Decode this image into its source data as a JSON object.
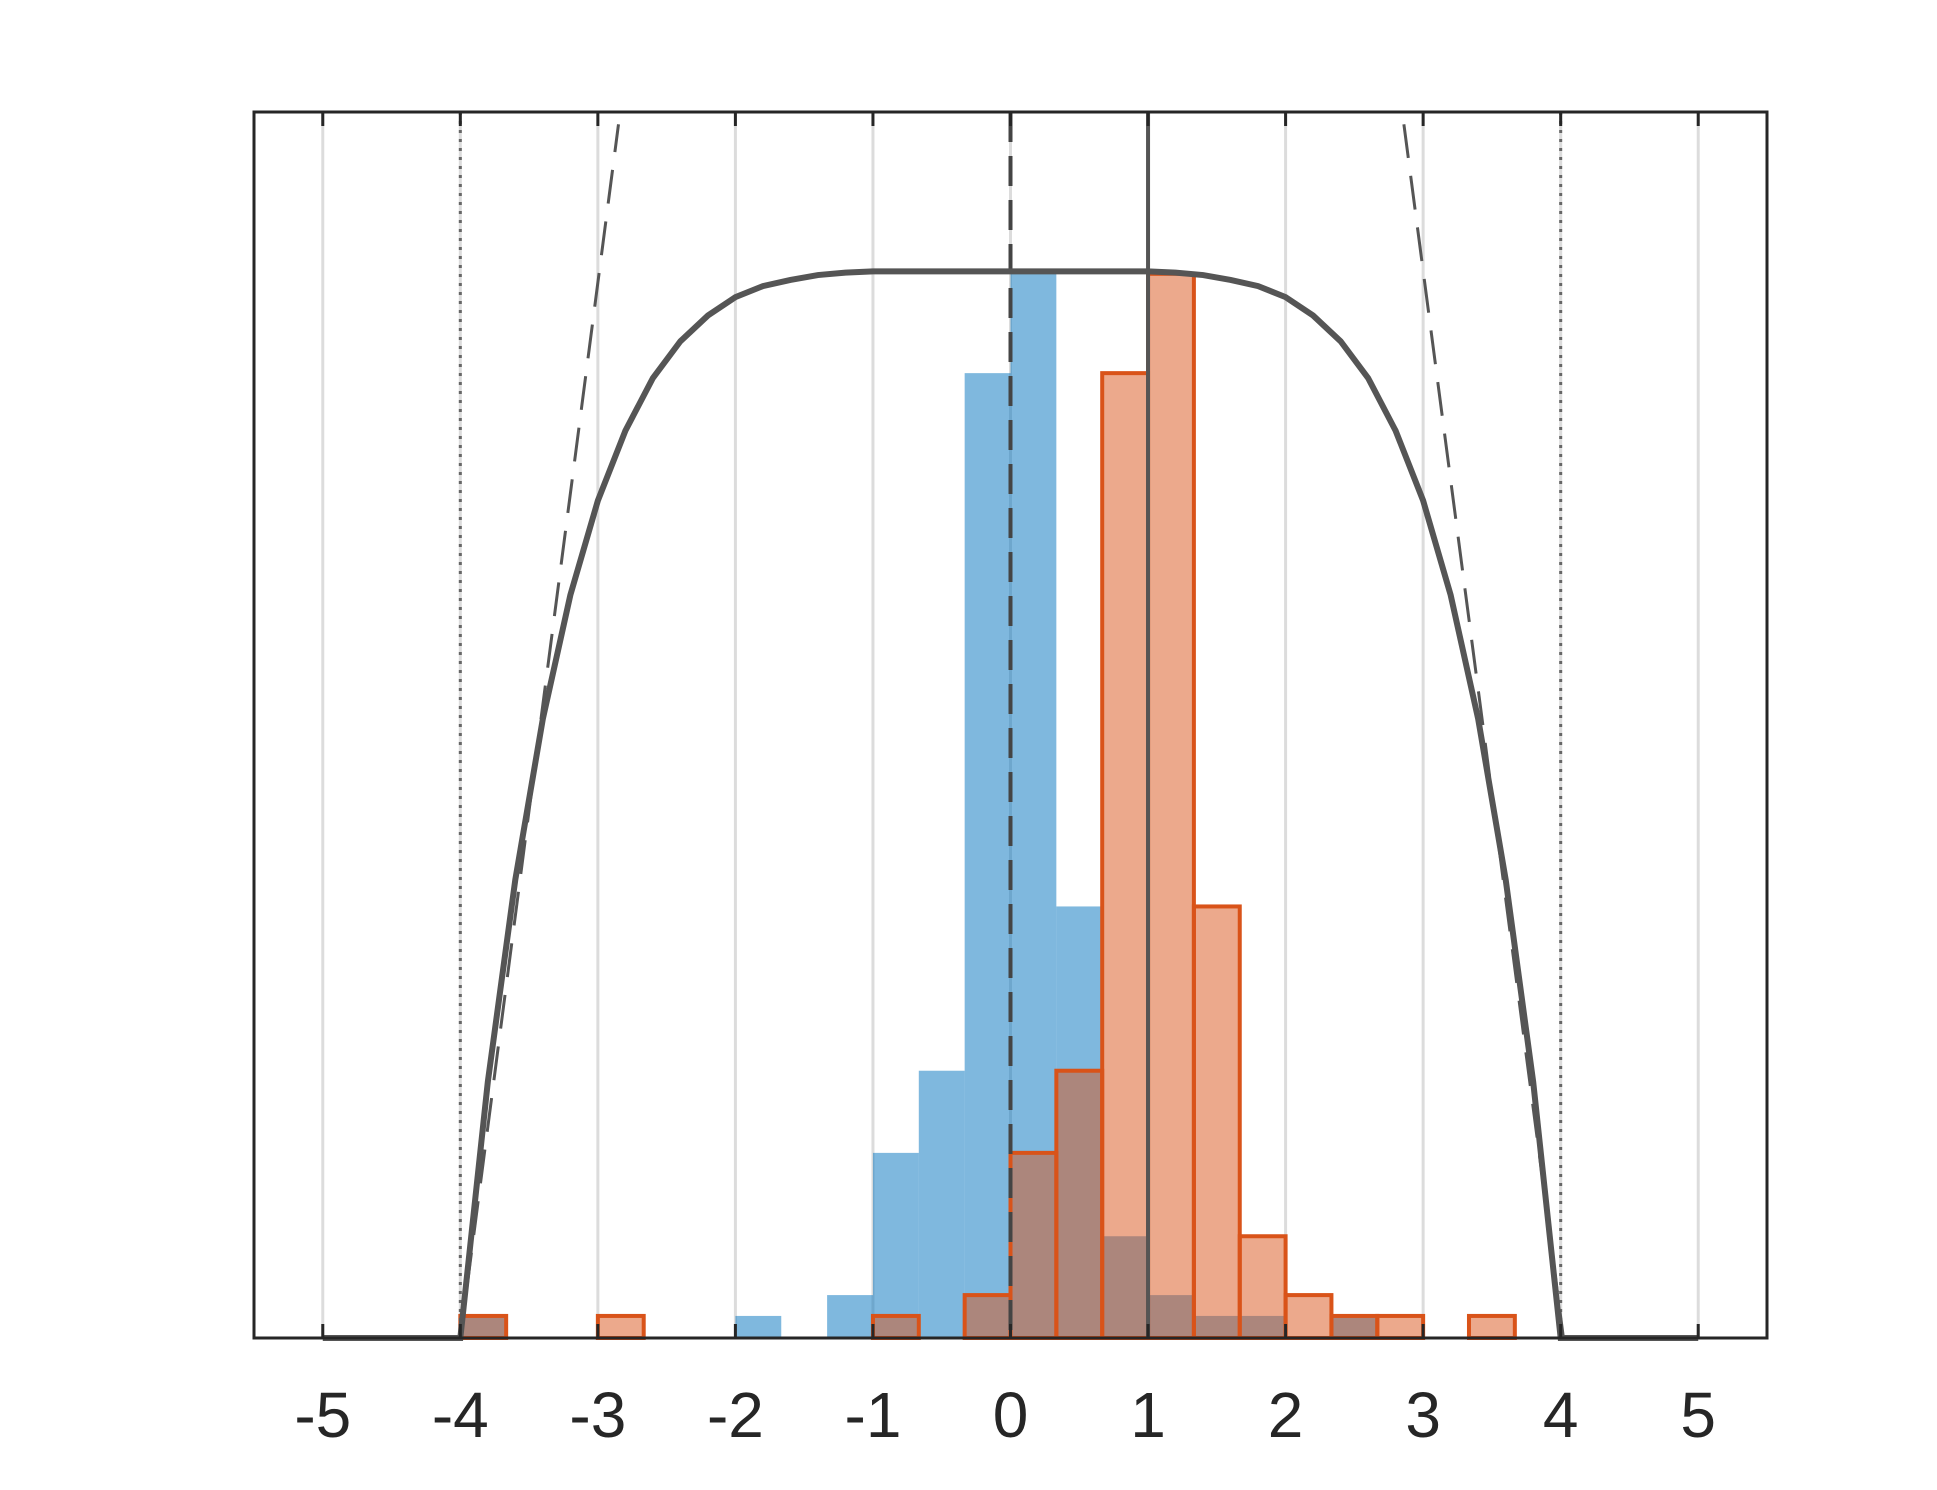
{
  "chart_data": {
    "type": "histogram",
    "xlim": [
      -5.5,
      5.5
    ],
    "xticks": [
      -5,
      -4,
      -3,
      -2,
      -1,
      0,
      1,
      2,
      3,
      4,
      5
    ],
    "ylim": [
      0,
      1
    ],
    "grid": true,
    "bins": [
      -4,
      -3.6667,
      -3.3333,
      -3,
      -2.6667,
      -2.3333,
      -2,
      -1.6667,
      -1.3333,
      -1,
      -0.6667,
      -0.3333,
      0,
      0.3333,
      0.6667,
      1,
      1.3333,
      1.6667,
      2,
      2.3333,
      2.6667,
      3,
      3.3333,
      3.6667,
      4
    ],
    "series": [
      {
        "color": "#0072bd",
        "outline": false,
        "values": [
          0.018,
          0,
          0,
          0,
          0,
          0,
          0.018,
          0,
          0.035,
          0.151,
          0.218,
          0.787,
          0.868,
          0.352,
          0.083,
          0.035,
          0.018,
          0.018,
          0,
          0.018,
          0,
          0,
          0,
          0
        ]
      },
      {
        "color": "#d95319",
        "outline": true,
        "values": [
          0.018,
          0,
          0,
          0.018,
          0,
          0,
          0,
          0,
          0,
          0.018,
          0,
          0.035,
          0.151,
          0.218,
          0.787,
          0.868,
          0.352,
          0.083,
          0.035,
          0.018,
          0.018,
          0,
          0.018,
          0
        ]
      }
    ],
    "lines": [
      {
        "type": "line",
        "color": "#555555",
        "dashed": false,
        "x": [
          -5,
          -4.8,
          -4.6,
          -4.4,
          -4.2,
          -4,
          -3.8,
          -3.6,
          -3.4,
          -3.2,
          -3,
          -2.8,
          -2.6,
          -2.4,
          -2.2,
          -2,
          -1.8,
          -1.6,
          -1.4,
          -1.2,
          -1,
          -0.8,
          -0.6,
          -0.4,
          -0.2,
          0,
          0.2,
          0.4,
          0.6,
          0.8,
          1,
          1.2,
          1.4,
          1.6,
          1.8,
          2,
          2.2,
          2.4,
          2.6,
          2.8,
          3,
          3.2,
          3.4,
          3.6,
          3.8,
          4,
          4.2,
          4.4,
          4.6,
          4.8,
          5
        ],
        "values": [
          0,
          0,
          0,
          0,
          0,
          0,
          0.209,
          0.374,
          0.505,
          0.606,
          0.683,
          0.74,
          0.783,
          0.813,
          0.834,
          0.849,
          0.858,
          0.863,
          0.867,
          0.869,
          0.87,
          0.87,
          0.87,
          0.87,
          0.87,
          0.87,
          0.87,
          0.87,
          0.87,
          0.87,
          0.87,
          0.869,
          0.867,
          0.863,
          0.858,
          0.849,
          0.834,
          0.813,
          0.783,
          0.74,
          0.683,
          0.606,
          0.505,
          0.374,
          0.209,
          0,
          0,
          0,
          0,
          0,
          0
        ]
      },
      {
        "type": "line",
        "color": "#555555",
        "dashed": true,
        "x": [
          -4,
          -2.85,
          0,
          2.86,
          4.02
        ],
        "values": [
          0,
          0.99,
          null,
          0.99,
          0
        ]
      }
    ],
    "vlines": [
      {
        "x": -4,
        "style": "dotted",
        "color": "#666666"
      },
      {
        "x": 0,
        "style": "dashed",
        "color": "#444444"
      },
      {
        "x": 1,
        "style": "solid",
        "color": "#555555"
      },
      {
        "x": 4,
        "style": "dotted",
        "color": "#666666"
      }
    ]
  }
}
